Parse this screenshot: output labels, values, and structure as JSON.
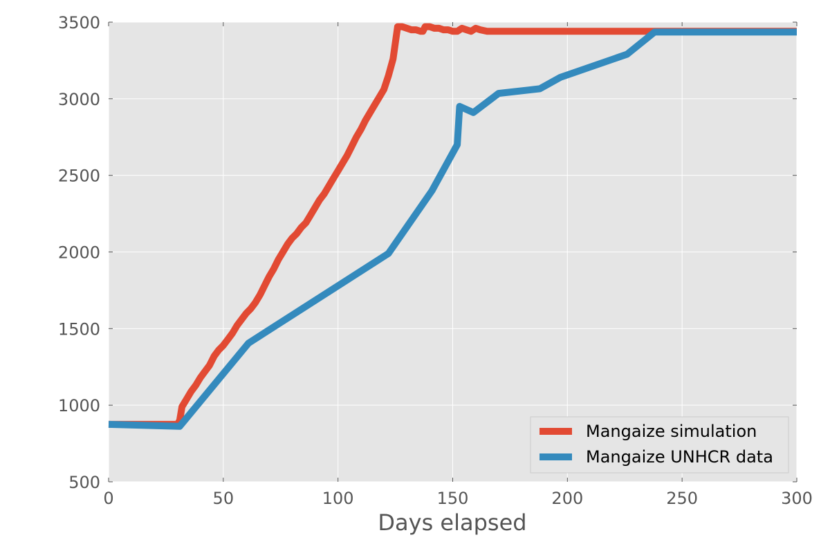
{
  "chart_data": {
    "type": "line",
    "title": "",
    "xlabel": "Days elapsed",
    "ylabel": "",
    "xlim": [
      0,
      300
    ],
    "ylim": [
      500,
      3500
    ],
    "xticks": [
      0,
      50,
      100,
      150,
      200,
      250,
      300
    ],
    "yticks": [
      500,
      1000,
      1500,
      2000,
      2500,
      3000,
      3500
    ],
    "grid": true,
    "legend_position": "lower-right",
    "series": [
      {
        "name": "Mangaize simulation",
        "color": "#e24a33",
        "x": [
          0,
          10,
          20,
          30,
          31,
          32,
          34,
          36,
          38,
          40,
          42,
          44,
          46,
          48,
          50,
          52,
          54,
          56,
          58,
          60,
          62,
          64,
          66,
          68,
          70,
          72,
          74,
          76,
          78,
          80,
          82,
          84,
          86,
          88,
          90,
          92,
          94,
          96,
          98,
          100,
          102,
          104,
          106,
          108,
          110,
          112,
          114,
          116,
          118,
          120,
          122,
          124,
          126,
          128,
          130,
          132,
          134,
          136,
          137,
          138,
          140,
          142,
          144,
          146,
          148,
          150,
          152,
          154,
          156,
          158,
          160,
          162,
          165,
          168,
          170,
          175,
          180,
          185,
          190,
          195,
          200,
          205,
          210,
          215,
          220,
          225,
          230,
          235,
          240,
          250,
          260,
          270,
          280,
          290,
          300
        ],
        "y": [
          875,
          875,
          875,
          875,
          900,
          990,
          1040,
          1090,
          1130,
          1180,
          1220,
          1260,
          1320,
          1360,
          1390,
          1430,
          1470,
          1520,
          1560,
          1600,
          1630,
          1670,
          1720,
          1780,
          1840,
          1890,
          1950,
          2000,
          2050,
          2090,
          2120,
          2160,
          2190,
          2240,
          2290,
          2340,
          2380,
          2430,
          2480,
          2530,
          2580,
          2630,
          2690,
          2750,
          2800,
          2860,
          2910,
          2960,
          3010,
          3060,
          3150,
          3260,
          3470,
          3470,
          3460,
          3450,
          3450,
          3440,
          3440,
          3470,
          3470,
          3460,
          3460,
          3450,
          3450,
          3440,
          3440,
          3460,
          3450,
          3440,
          3460,
          3450,
          3440,
          3440,
          3440,
          3440,
          3440,
          3440,
          3440,
          3440,
          3440,
          3440,
          3440,
          3440,
          3440,
          3440,
          3440,
          3440,
          3440,
          3440,
          3440,
          3440,
          3440,
          3440,
          3440
        ]
      },
      {
        "name": "Mangaize UNHCR data",
        "color": "#348abd",
        "x": [
          0,
          31,
          61,
          122,
          141,
          152,
          153,
          159,
          170,
          188,
          197,
          226,
          238,
          300
        ],
        "y": [
          875,
          862,
          1405,
          1990,
          2400,
          2700,
          2950,
          2910,
          3035,
          3065,
          3140,
          3290,
          3435,
          3435
        ]
      }
    ]
  }
}
